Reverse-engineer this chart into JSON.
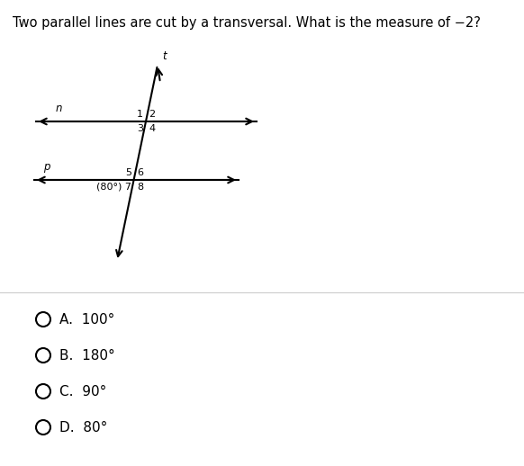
{
  "title": "Two parallel lines are cut by a transversal. What is the measure of −2?",
  "bg_color": "#ffffff",
  "text_color": "#000000",
  "line_color": "#000000",
  "label_n": "n",
  "label_p": "p",
  "label_t": "t",
  "angle_label": "(80°) 7",
  "choices": [
    "A.  100°",
    "B.  180°",
    "C.  90°",
    "D.  80°"
  ],
  "font_size_title": 10.5,
  "font_size_labels": 8.5,
  "font_size_numbers": 8,
  "font_size_choices": 11
}
